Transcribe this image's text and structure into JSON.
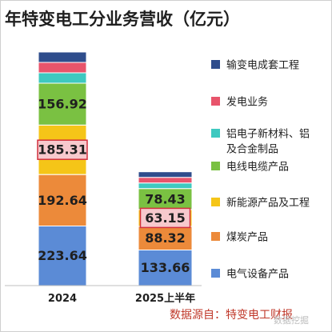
{
  "title": "年特变电工分业务营收（亿元）",
  "source_note": "数据源自：特变电工财报",
  "watermark": "数据挖掘",
  "chart_data": {
    "type": "bar",
    "stacked": true,
    "categories": [
      "2024",
      "2025上半年"
    ],
    "series": [
      {
        "name": "电气设备产品",
        "color": "#5b8bd6",
        "values": [
          223.64,
          133.66
        ]
      },
      {
        "name": "煤炭产品",
        "color": "#ec8a3a",
        "values": [
          192.64,
          88.32
        ]
      },
      {
        "name": "新能源产品及工程",
        "color": "#f5c518",
        "values": [
          185.31,
          63.15
        ]
      },
      {
        "name": "电线电缆产品",
        "color": "#7ac142",
        "values": [
          156.92,
          78.43
        ]
      },
      {
        "name": "铝电子新材料、铝及合金制品",
        "color": "#3ec9c0",
        "values": [
          null,
          null
        ]
      },
      {
        "name": "发电业务",
        "color": "#e8546b",
        "values": [
          null,
          null
        ]
      },
      {
        "name": "输变电成套工程",
        "color": "#2f4d8c",
        "values": [
          null,
          null
        ]
      }
    ],
    "legend_position": "right",
    "grid": false,
    "highlighted_labels": [
      "185.31",
      "63.15"
    ]
  }
}
